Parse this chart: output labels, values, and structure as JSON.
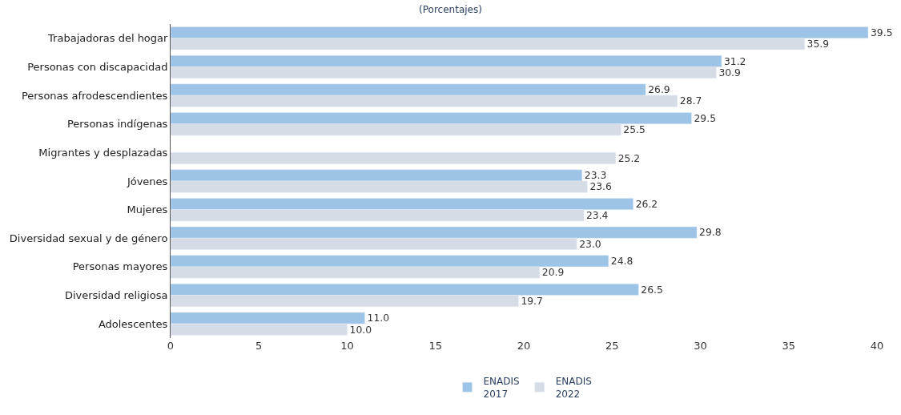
{
  "chart_data": {
    "type": "bar",
    "orientation": "horizontal",
    "title": "(Porcentajes)",
    "categories": [
      "Trabajadoras del hogar",
      "Personas con discapacidad",
      "Personas afrodescendientes",
      "Personas indígenas",
      "Migrantes y desplazadas",
      "Jóvenes",
      "Mujeres",
      "Diversidad sexual y de género",
      "Personas mayores",
      "Diversidad religiosa",
      "Adolescentes"
    ],
    "series": [
      {
        "name": "ENADIS 2017",
        "color": "#9dc3e6",
        "values": [
          39.5,
          31.2,
          26.9,
          29.5,
          null,
          23.3,
          26.2,
          29.8,
          24.8,
          26.5,
          11.0
        ],
        "value_labels": [
          "39.5",
          "31.2",
          "26.9",
          "29.5",
          null,
          "23.3",
          "26.2",
          "29.8",
          "24.8",
          "26.5",
          "11.0"
        ]
      },
      {
        "name": "ENADIS 2022",
        "color": "#d6dce5",
        "values": [
          35.9,
          30.9,
          28.7,
          25.5,
          25.2,
          23.6,
          23.4,
          23.0,
          20.9,
          19.7,
          10.0
        ],
        "value_labels": [
          "35.9",
          "30.9",
          "28.7",
          "25.5",
          "25.2",
          "23.6",
          "23.4",
          "23.0",
          "20.9",
          "19.7",
          "10.0"
        ]
      }
    ],
    "xlim": [
      0,
      40
    ],
    "xticks": [
      0,
      5,
      10,
      15,
      20,
      25,
      30,
      35,
      40
    ],
    "legend": "bottom"
  }
}
